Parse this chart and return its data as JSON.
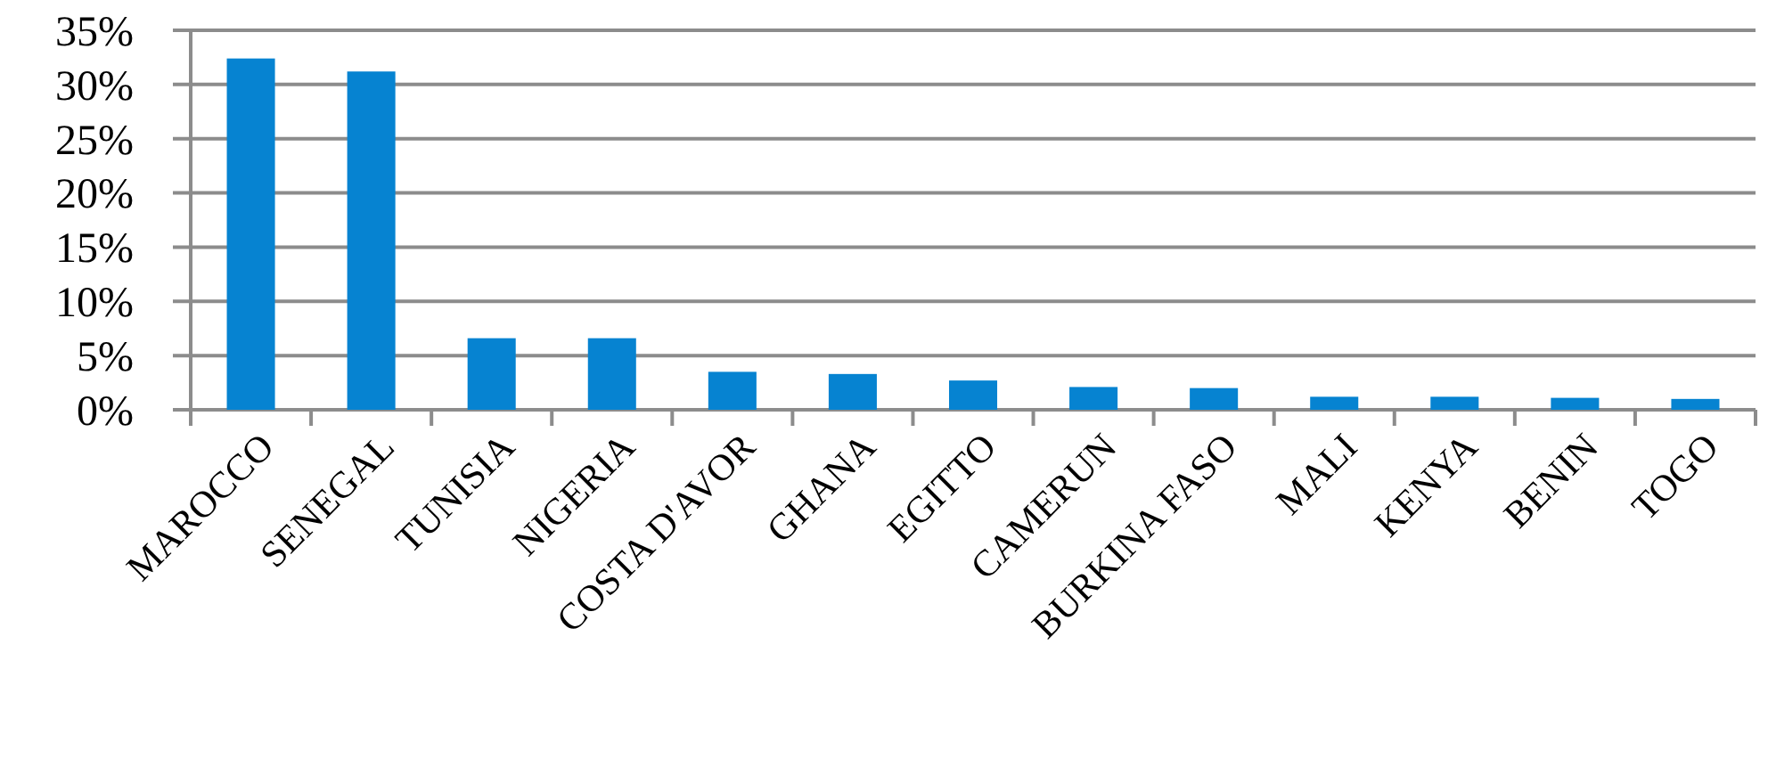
{
  "chart_data": {
    "type": "bar",
    "categories": [
      "MAROCCO",
      "SENEGAL",
      "TUNISIA",
      "NIGERIA",
      "COSTA D'AVOR",
      "GHANA",
      "EGITTO",
      "CAMERUN",
      "BURKINA FASO",
      "MALI",
      "KENYA",
      "BENIN",
      "TOGO"
    ],
    "values": [
      32.4,
      31.2,
      6.6,
      6.6,
      3.5,
      3.3,
      2.7,
      2.1,
      2.0,
      1.2,
      1.2,
      1.1,
      1.0
    ],
    "color": "#0683d1",
    "ylim": [
      0,
      35
    ],
    "yticks": [
      {
        "value": 0,
        "label": "0%"
      },
      {
        "value": 5,
        "label": "5%"
      },
      {
        "value": 10,
        "label": "10%"
      },
      {
        "value": 15,
        "label": "15%"
      },
      {
        "value": 20,
        "label": "20%"
      },
      {
        "value": 25,
        "label": "25%"
      },
      {
        "value": 30,
        "label": "30%"
      },
      {
        "value": 35,
        "label": "35%"
      }
    ],
    "grid": "y"
  }
}
